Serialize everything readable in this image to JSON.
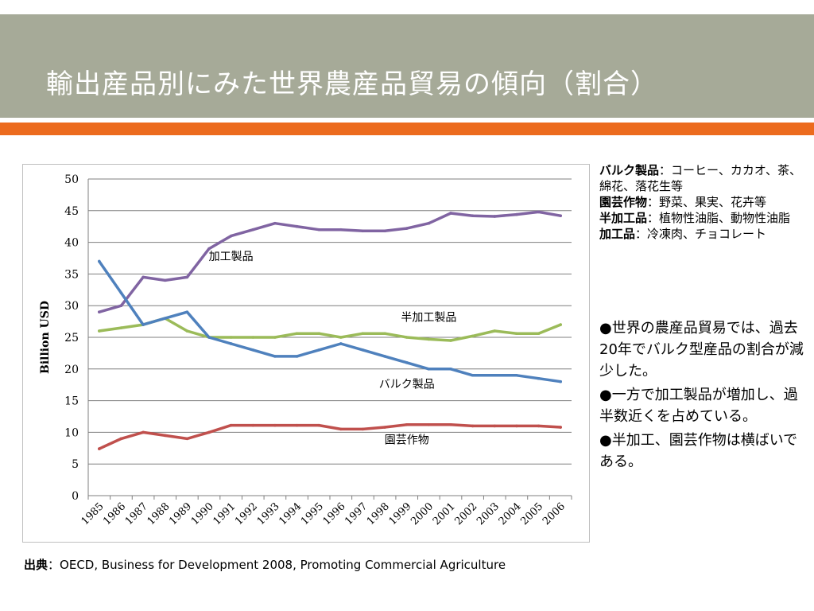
{
  "slide": {
    "title": "輸出産品別にみた世界農産品貿易の傾向（割合）",
    "accent_color": "#ec6b1e",
    "header_color": "#a6aa98"
  },
  "legend_panel": [
    {
      "term": "バルク製品",
      "sep": "：",
      "desc": "コーヒー、カカオ、茶、綿花、落花生等"
    },
    {
      "term": "園芸作物",
      "sep": "：",
      "desc": "野菜、果実、花卉等"
    },
    {
      "term": "半加工品",
      "sep": "：",
      "desc": "植物性油脂、動物性油脂"
    },
    {
      "term": "加工品",
      "sep": "：",
      "desc": "冷凍肉、チョコレート"
    }
  ],
  "bullets": [
    "●世界の農産品貿易では、過去20年でバルク型産品の割合が減少した。",
    "●一方で加工製品が増加し、過半数近くを占めている。",
    "●半加工、園芸作物は横ばいである。"
  ],
  "source": {
    "label": "出典",
    "sep": "：",
    "text": "OECD, Business for Development 2008, Promoting Commercial Agriculture"
  },
  "chart_data": {
    "type": "line",
    "title": "",
    "xlabel": "",
    "ylabel": "Billion USD",
    "ylim": [
      0,
      50
    ],
    "yticks": [
      0,
      5,
      10,
      15,
      20,
      25,
      30,
      35,
      40,
      45,
      50
    ],
    "grid": true,
    "x": [
      "1985",
      "1986",
      "1987",
      "1988",
      "1989",
      "1990",
      "1991",
      "1992",
      "1993",
      "1994",
      "1995",
      "1996",
      "1997",
      "1998",
      "1999",
      "2000",
      "2001",
      "2002",
      "2003",
      "2004",
      "2005",
      "2006"
    ],
    "series": [
      {
        "name": "加工製品",
        "color": "#8064a2",
        "values": [
          29,
          30,
          34.5,
          34,
          34.5,
          39,
          41,
          42,
          43,
          42.5,
          42,
          42,
          41.8,
          41.8,
          42.2,
          43,
          44.6,
          44.2,
          44.1,
          44.4,
          44.8,
          44.2
        ]
      },
      {
        "name": "半加工製品",
        "color": "#9bbb59",
        "values": [
          26,
          26.5,
          27,
          28,
          26,
          25,
          25,
          25,
          25,
          25.6,
          25.6,
          25,
          25.6,
          25.6,
          25,
          24.7,
          24.5,
          25.2,
          26,
          25.6,
          25.6,
          27
        ]
      },
      {
        "name": "バルク製品",
        "color": "#4f81bd",
        "values": [
          37,
          32,
          27,
          28,
          29,
          25,
          24,
          23,
          22,
          22,
          23,
          24,
          23,
          22,
          21,
          20,
          20,
          19,
          19,
          19,
          18.5,
          18
        ]
      },
      {
        "name": "園芸作物",
        "color": "#c0504d",
        "values": [
          7.4,
          9,
          10,
          9.5,
          9,
          10,
          11.1,
          11.1,
          11.1,
          11.1,
          11.1,
          10.5,
          10.5,
          10.8,
          11.2,
          11.2,
          11.2,
          11,
          11,
          11,
          11,
          10.8
        ]
      }
    ]
  }
}
